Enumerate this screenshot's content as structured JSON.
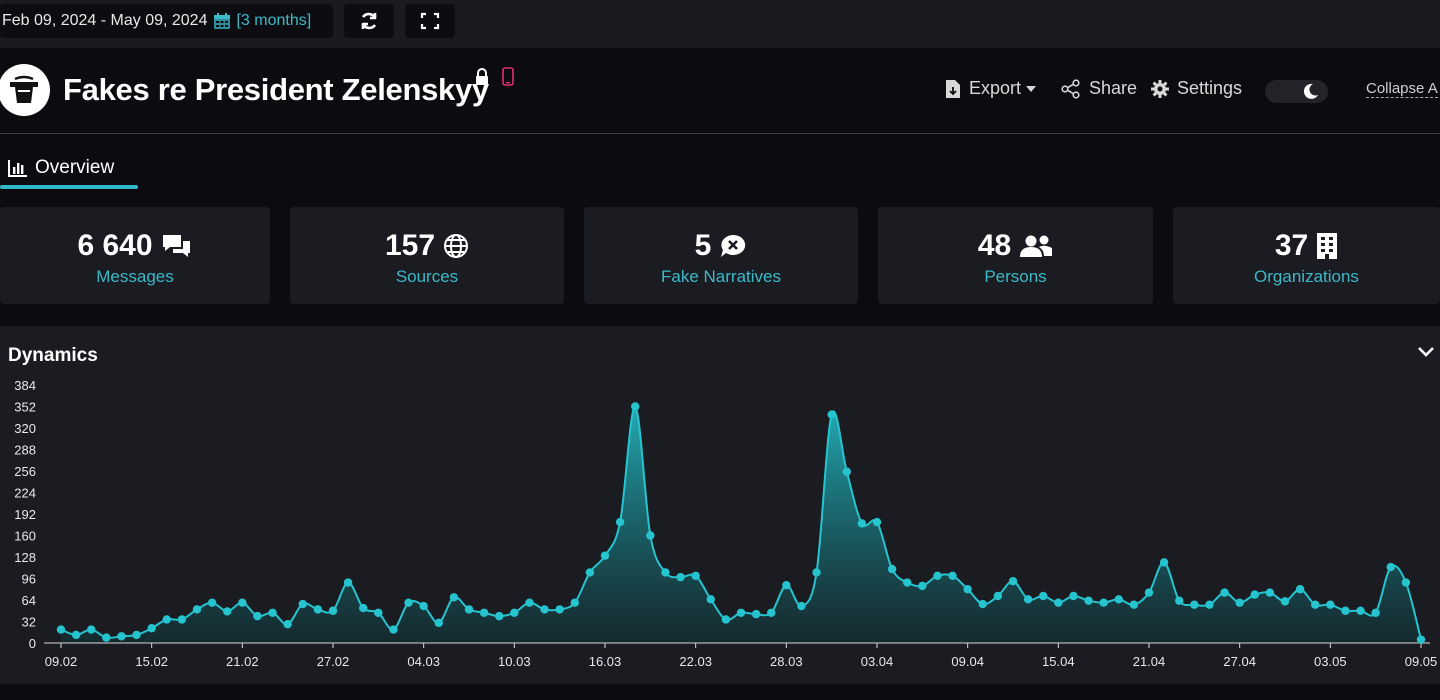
{
  "topbar": {
    "date_range": "Feb 09, 2024 - May 09, 2024",
    "period": "[3 months]"
  },
  "header": {
    "title": "Fakes re President Zelenskyy",
    "export_label": "Export",
    "share_label": "Share",
    "settings_label": "Settings",
    "collapse_label": "Collapse A"
  },
  "tabs": [
    {
      "label": "Overview",
      "active": true
    }
  ],
  "stats": [
    {
      "value": "6 640",
      "label": "Messages",
      "icon": "messages-icon"
    },
    {
      "value": "157",
      "label": "Sources",
      "icon": "globe-icon"
    },
    {
      "value": "5",
      "label": "Fake Narratives",
      "icon": "fake-narrative-icon"
    },
    {
      "value": "48",
      "label": "Persons",
      "icon": "persons-icon"
    },
    {
      "value": "37",
      "label": "Organizations",
      "icon": "building-icon"
    }
  ],
  "dynamics": {
    "title": "Dynamics"
  },
  "colors": {
    "accent": "#3ab9c9",
    "line": "#25c4cf",
    "background": "#0b0b10",
    "card": "#1b1c22"
  },
  "chart_data": {
    "type": "area",
    "ylim": [
      0,
      384
    ],
    "yticks": [
      0,
      32,
      64,
      96,
      128,
      160,
      192,
      224,
      256,
      288,
      320,
      352,
      384
    ],
    "xtick_labels": [
      "09.02",
      "15.02",
      "21.02",
      "27.02",
      "04.03",
      "10.03",
      "16.03",
      "22.03",
      "28.03",
      "03.04",
      "09.04",
      "15.04",
      "21.04",
      "27.04",
      "03.05",
      "09.05"
    ],
    "series": [
      {
        "values": [
          20,
          12,
          20,
          8,
          10,
          12,
          22,
          35,
          35,
          50,
          60,
          47,
          60,
          40,
          45,
          28,
          58,
          50,
          48,
          90,
          52,
          45,
          20,
          60,
          55,
          30,
          68,
          50,
          45,
          40,
          45,
          60,
          50,
          50,
          60,
          105,
          130,
          180,
          352,
          160,
          105,
          98,
          100,
          65,
          35,
          45,
          43,
          45,
          86,
          55,
          105,
          340,
          255,
          178,
          180,
          110,
          90,
          85,
          100,
          100,
          80,
          58,
          70,
          92,
          65,
          70,
          60,
          70,
          63,
          60,
          65,
          57,
          75,
          120,
          63,
          57,
          57,
          75,
          60,
          72,
          75,
          62,
          80,
          57,
          57,
          48,
          48,
          45,
          113,
          90,
          5
        ]
      }
    ]
  }
}
